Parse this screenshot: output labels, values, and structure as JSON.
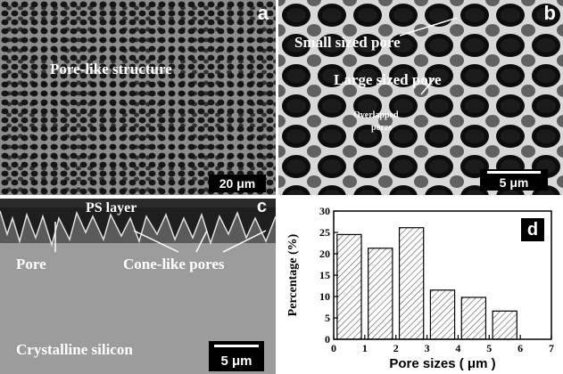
{
  "panels": {
    "a": {
      "letter": "a",
      "label": "Pore-like structure",
      "scale": "20 μm"
    },
    "b": {
      "letter": "b",
      "label_small": "Small sized pore",
      "label_large": "Large sized pore",
      "label_overlap_1": "Overlapped",
      "label_overlap_2": "pores",
      "scale": "5 μm"
    },
    "c": {
      "letter": "c",
      "label_ps": "PS layer",
      "label_pore": "Pore",
      "label_cone": "Cone-like pores",
      "label_si": "Crystalline silicon",
      "scale": "5 μm"
    },
    "d": {
      "letter": "d"
    }
  },
  "chart_data": {
    "type": "bar",
    "x": [
      0.5,
      1.5,
      2.5,
      3.5,
      4.5,
      5.5
    ],
    "values": [
      24.5,
      21.3,
      26.1,
      11.5,
      9.8,
      6.6
    ],
    "xlabel": "Pore sizes ( μm )",
    "ylabel": "Percentage (%)",
    "xlim": [
      0,
      7
    ],
    "ylim": [
      0,
      30
    ],
    "xticks": [
      "0",
      "1",
      "2",
      "3",
      "4",
      "5",
      "6",
      "7"
    ],
    "yticks": [
      "0",
      "5",
      "10",
      "15",
      "20",
      "25",
      "30"
    ],
    "bar_fill": "hatched",
    "grid": false
  }
}
